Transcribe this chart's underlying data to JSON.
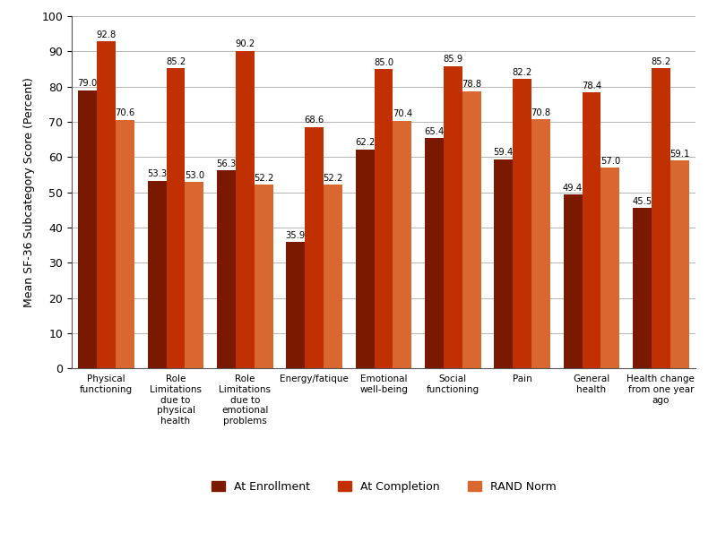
{
  "categories": [
    "Physical\nfunctioning",
    "Role\nLimitations\ndue to\nphysical\nhealth",
    "Role\nLimitations\ndue to\nemotional\nproblems",
    "Energy/fatique",
    "Emotional\nwell-being",
    "Social\nfunctioning",
    "Pain",
    "General\nhealth",
    "Health change\nfrom one year\nago"
  ],
  "enrollment": [
    79.0,
    53.3,
    56.3,
    35.9,
    62.2,
    65.4,
    59.4,
    49.4,
    45.5
  ],
  "completion": [
    92.8,
    85.2,
    90.2,
    68.6,
    85.0,
    85.9,
    82.2,
    78.4,
    85.2
  ],
  "rand_norm": [
    70.6,
    53.0,
    52.2,
    52.2,
    70.4,
    78.8,
    70.8,
    57.0,
    59.1
  ],
  "color_enrollment": "#7B1800",
  "color_completion": "#C03000",
  "color_rand": "#D96830",
  "ylabel": "Mean SF-36 Subcategory Score (Percent)",
  "ylim": [
    0,
    100
  ],
  "yticks": [
    0,
    10,
    20,
    30,
    40,
    50,
    60,
    70,
    80,
    90,
    100
  ],
  "legend_labels": [
    "At Enrollment",
    "At Completion",
    "RAND Norm"
  ],
  "bar_width": 0.27,
  "annotation_fontsize": 7.2
}
